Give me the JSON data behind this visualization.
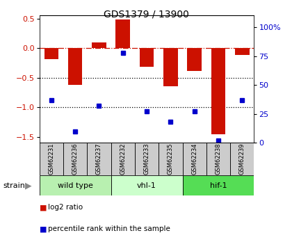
{
  "title": "GDS1379 / 13900",
  "samples": [
    "GSM62231",
    "GSM62236",
    "GSM62237",
    "GSM62232",
    "GSM62233",
    "GSM62235",
    "GSM62234",
    "GSM62238",
    "GSM62239"
  ],
  "log2_ratio": [
    -0.18,
    -0.62,
    0.1,
    0.48,
    -0.32,
    -0.65,
    -0.38,
    -1.45,
    -0.12
  ],
  "percentile_rank": [
    37,
    10,
    32,
    78,
    27,
    18,
    27,
    2,
    37
  ],
  "groups": [
    {
      "label": "wild type",
      "indices": [
        0,
        1,
        2
      ],
      "color": "#b8f0b0"
    },
    {
      "label": "vhl-1",
      "indices": [
        3,
        4,
        5
      ],
      "color": "#ccffcc"
    },
    {
      "label": "hif-1",
      "indices": [
        6,
        7,
        8
      ],
      "color": "#55dd55"
    }
  ],
  "ylim_left": [
    -1.6,
    0.55
  ],
  "ylim_right": [
    0,
    110
  ],
  "yticks_left": [
    0.5,
    0.0,
    -0.5,
    -1.0,
    -1.5
  ],
  "yticks_right": [
    0,
    25,
    50,
    75,
    100
  ],
  "bar_color": "#cc1100",
  "dot_color": "#0000cc",
  "hline_y": 0.0,
  "dotted_lines": [
    -0.5,
    -1.0
  ],
  "legend_items": [
    {
      "label": "log2 ratio",
      "color": "#cc1100"
    },
    {
      "label": "percentile rank within the sample",
      "color": "#0000cc"
    }
  ],
  "strain_label": "strain",
  "arrow_char": "▶",
  "sample_bg": "#cccccc",
  "bar_width": 0.6
}
